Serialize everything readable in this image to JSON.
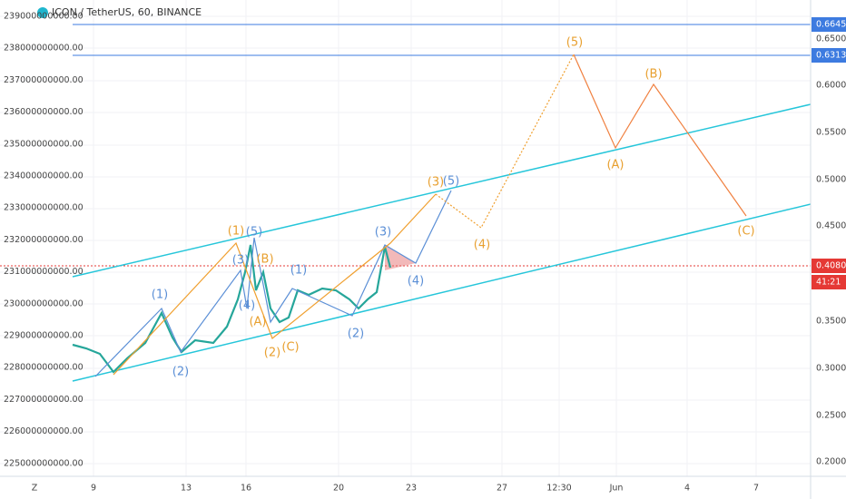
{
  "header": {
    "title": "ICON / TetherUS, 60, BINANCE"
  },
  "left_axis": [
    "239000000000.00",
    "238000000000.00",
    "237000000000.00",
    "236000000000.00",
    "235000000000.00",
    "234000000000.00",
    "233000000000.00",
    "232000000000.00",
    "231000000000.00",
    "230000000000.00",
    "229000000000.00",
    "228000000000.00",
    "227000000000.00",
    "226000000000.00",
    "225000000000.00"
  ],
  "right_axis": [
    "0.6500",
    "0.6000",
    "0.5500",
    "0.5000",
    "0.4500",
    "0.3500",
    "0.3000",
    "0.2500",
    "0.2000"
  ],
  "price_badges": [
    "0.6645",
    "0.6313",
    "0.4080",
    "41:21"
  ],
  "x_axis": [
    "9",
    "13",
    "16",
    "20",
    "23",
    "27",
    "12:30",
    "Jun",
    "4",
    "7"
  ],
  "corner_label": "Z",
  "wave_labels": [
    "(1)",
    "(2)",
    "(1)",
    "(5)",
    "(3)",
    "(B)",
    "(4)",
    "(A)",
    "(2)",
    "(C)",
    "(1)",
    "(2)",
    "(3)",
    "(4)",
    "(3)",
    "(5)",
    "(4)",
    "(5)",
    "(A)",
    "(B)",
    "(C)"
  ]
}
